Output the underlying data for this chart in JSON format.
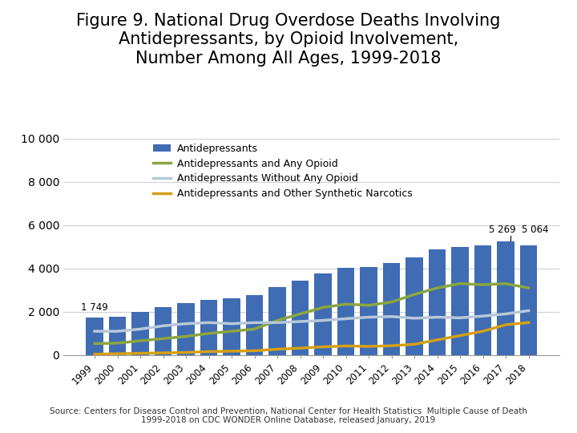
{
  "title": "Figure 9. National Drug Overdose Deaths Involving\nAntidepressants, by Opioid Involvement,\nNumber Among All Ages, 1999-2018",
  "years": [
    1999,
    2000,
    2001,
    2002,
    2003,
    2004,
    2005,
    2006,
    2007,
    2008,
    2009,
    2010,
    2011,
    2012,
    2013,
    2014,
    2015,
    2016,
    2017,
    2018
  ],
  "antidepressants": [
    1749,
    1761,
    1990,
    2231,
    2414,
    2556,
    2611,
    2771,
    3140,
    3448,
    3763,
    4030,
    4054,
    4234,
    4496,
    4869,
    5007,
    5058,
    5269,
    5064
  ],
  "any_opioid": [
    530,
    550,
    660,
    760,
    860,
    1000,
    1100,
    1200,
    1600,
    1900,
    2200,
    2350,
    2300,
    2450,
    2800,
    3100,
    3300,
    3250,
    3300,
    3100
  ],
  "without_opioid": [
    1100,
    1100,
    1200,
    1350,
    1450,
    1500,
    1450,
    1500,
    1500,
    1550,
    1600,
    1680,
    1750,
    1780,
    1700,
    1750,
    1720,
    1800,
    1900,
    2050
  ],
  "other_synthetic": [
    40,
    60,
    80,
    100,
    120,
    160,
    180,
    200,
    270,
    320,
    380,
    420,
    400,
    430,
    500,
    700,
    900,
    1100,
    1400,
    1500
  ],
  "bar_color": "#3F6CB3",
  "any_opioid_color": "#8BA640",
  "without_opioid_color": "#B8C8D8",
  "other_synthetic_color": "#D4A017",
  "ylim": [
    0,
    10000
  ],
  "yticks": [
    0,
    2000,
    4000,
    6000,
    8000,
    10000
  ],
  "ytick_labels": [
    "0",
    "2 000",
    "4 000",
    "6 000",
    "8 000",
    "10 000"
  ],
  "legend_labels": [
    "Antidepressants",
    "Antidepressants and Any Opioid",
    "Antidepressants Without Any Opioid",
    "Antidepressants and Other Synthetic Narcotics"
  ],
  "source_text": "Source: Centers for Disease Control and Prevention, National Center for Health Statistics  Multiple Cause of Death\n1999-2018 on CDC WONDER Online Database, released January, 2019",
  "annotation_2017": "5 269",
  "annotation_2018": "5 064",
  "annotation_1999": "1 749",
  "title_fontsize": 15,
  "axis_fontsize": 10,
  "background_color": "#FFFFFF"
}
